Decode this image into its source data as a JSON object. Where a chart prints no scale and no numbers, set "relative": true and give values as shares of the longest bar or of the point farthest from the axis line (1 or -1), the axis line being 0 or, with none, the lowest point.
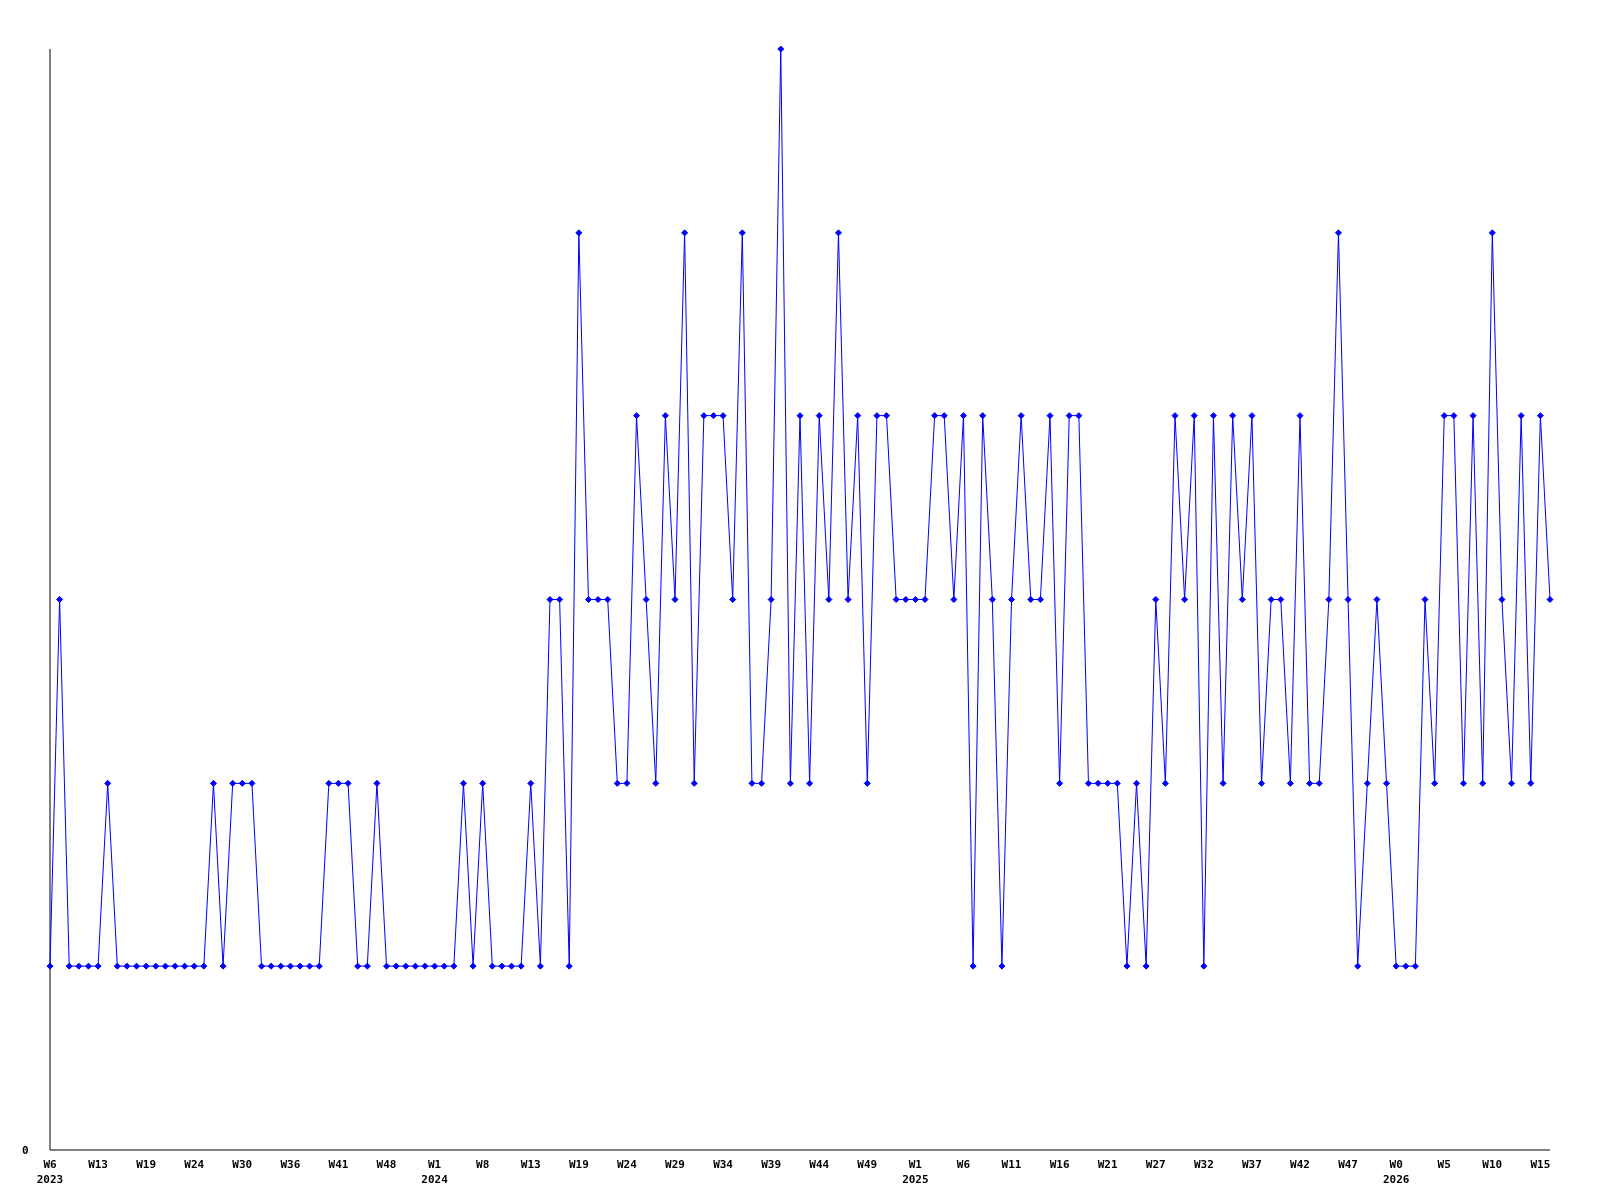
{
  "chart_data": {
    "type": "line",
    "relative": true,
    "marker": "diamond",
    "line_style": "solid",
    "annotations": [
      "0"
    ],
    "categories": [
      "W6\n2023",
      null,
      null,
      null,
      null,
      "W13",
      null,
      null,
      null,
      null,
      "W19",
      null,
      null,
      null,
      null,
      "W24",
      null,
      null,
      null,
      null,
      "W30",
      null,
      null,
      null,
      null,
      "W36",
      null,
      null,
      null,
      null,
      "W41",
      null,
      null,
      null,
      null,
      "W48",
      null,
      null,
      null,
      null,
      "W1\n2024",
      null,
      null,
      null,
      null,
      "W8",
      null,
      null,
      null,
      null,
      "W13",
      null,
      null,
      null,
      null,
      "W19",
      null,
      null,
      null,
      null,
      "W24",
      null,
      null,
      null,
      null,
      "W29",
      null,
      null,
      null,
      null,
      "W34",
      null,
      null,
      null,
      null,
      "W39",
      null,
      null,
      null,
      null,
      "W44",
      null,
      null,
      null,
      null,
      "W49",
      null,
      null,
      null,
      null,
      "W1\n2025",
      null,
      null,
      null,
      null,
      "W6",
      null,
      null,
      null,
      null,
      "W11",
      null,
      null,
      null,
      null,
      "W16",
      null,
      null,
      null,
      null,
      "W21",
      null,
      null,
      null,
      null,
      "W27",
      null,
      null,
      null,
      null,
      "W32",
      null,
      null,
      null,
      null,
      "W37",
      null,
      null,
      null,
      null,
      "W42",
      null,
      null,
      null,
      null,
      "W47",
      null,
      null,
      null,
      null,
      "W0\n2026",
      null,
      null,
      null,
      null,
      "W5",
      null,
      null,
      null,
      null,
      "W10",
      null,
      null,
      null,
      null,
      "W15",
      null
    ],
    "series": [
      {
        "color": "#0000ff",
        "values": [
          0.167,
          0.5,
          0.167,
          0.167,
          0.167,
          0.167,
          0.333,
          0.167,
          0.167,
          0.167,
          0.167,
          0.167,
          0.167,
          0.167,
          0.167,
          0.167,
          0.167,
          0.333,
          0.167,
          0.333,
          0.333,
          0.333,
          0.167,
          0.167,
          0.167,
          0.167,
          0.167,
          0.167,
          0.167,
          0.333,
          0.333,
          0.333,
          0.167,
          0.167,
          0.333,
          0.167,
          0.167,
          0.167,
          0.167,
          0.167,
          0.167,
          0.167,
          0.167,
          0.333,
          0.167,
          0.333,
          0.167,
          0.167,
          0.167,
          0.167,
          0.333,
          0.167,
          0.5,
          0.5,
          0.167,
          0.833,
          0.5,
          0.5,
          0.5,
          0.333,
          0.333,
          0.667,
          0.5,
          0.333,
          0.667,
          0.5,
          0.833,
          0.333,
          0.667,
          0.667,
          0.667,
          0.5,
          0.833,
          0.333,
          0.333,
          0.5,
          1,
          0.333,
          0.667,
          0.333,
          0.667,
          0.5,
          0.833,
          0.5,
          0.667,
          0.333,
          0.667,
          0.667,
          0.5,
          0.5,
          0.5,
          0.5,
          0.667,
          0.667,
          0.5,
          0.667,
          0.167,
          0.667,
          0.5,
          0.167,
          0.5,
          0.667,
          0.5,
          0.5,
          0.667,
          0.333,
          0.667,
          0.667,
          0.333,
          0.333,
          0.333,
          0.333,
          0.167,
          0.333,
          0.167,
          0.5,
          0.333,
          0.667,
          0.5,
          0.667,
          0.167,
          0.667,
          0.333,
          0.667,
          0.5,
          0.667,
          0.333,
          0.5,
          0.5,
          0.333,
          0.667,
          0.333,
          0.333,
          0.5,
          0.833,
          0.5,
          0.167,
          0.333,
          0.5,
          0.333,
          0.167,
          0.167,
          0.167,
          0.5,
          0.333,
          0.667,
          0.667,
          0.333,
          0.667,
          0.333,
          0.833,
          0.5,
          0.333,
          0.667,
          0.333,
          0.667,
          0.5
        ]
      }
    ]
  }
}
